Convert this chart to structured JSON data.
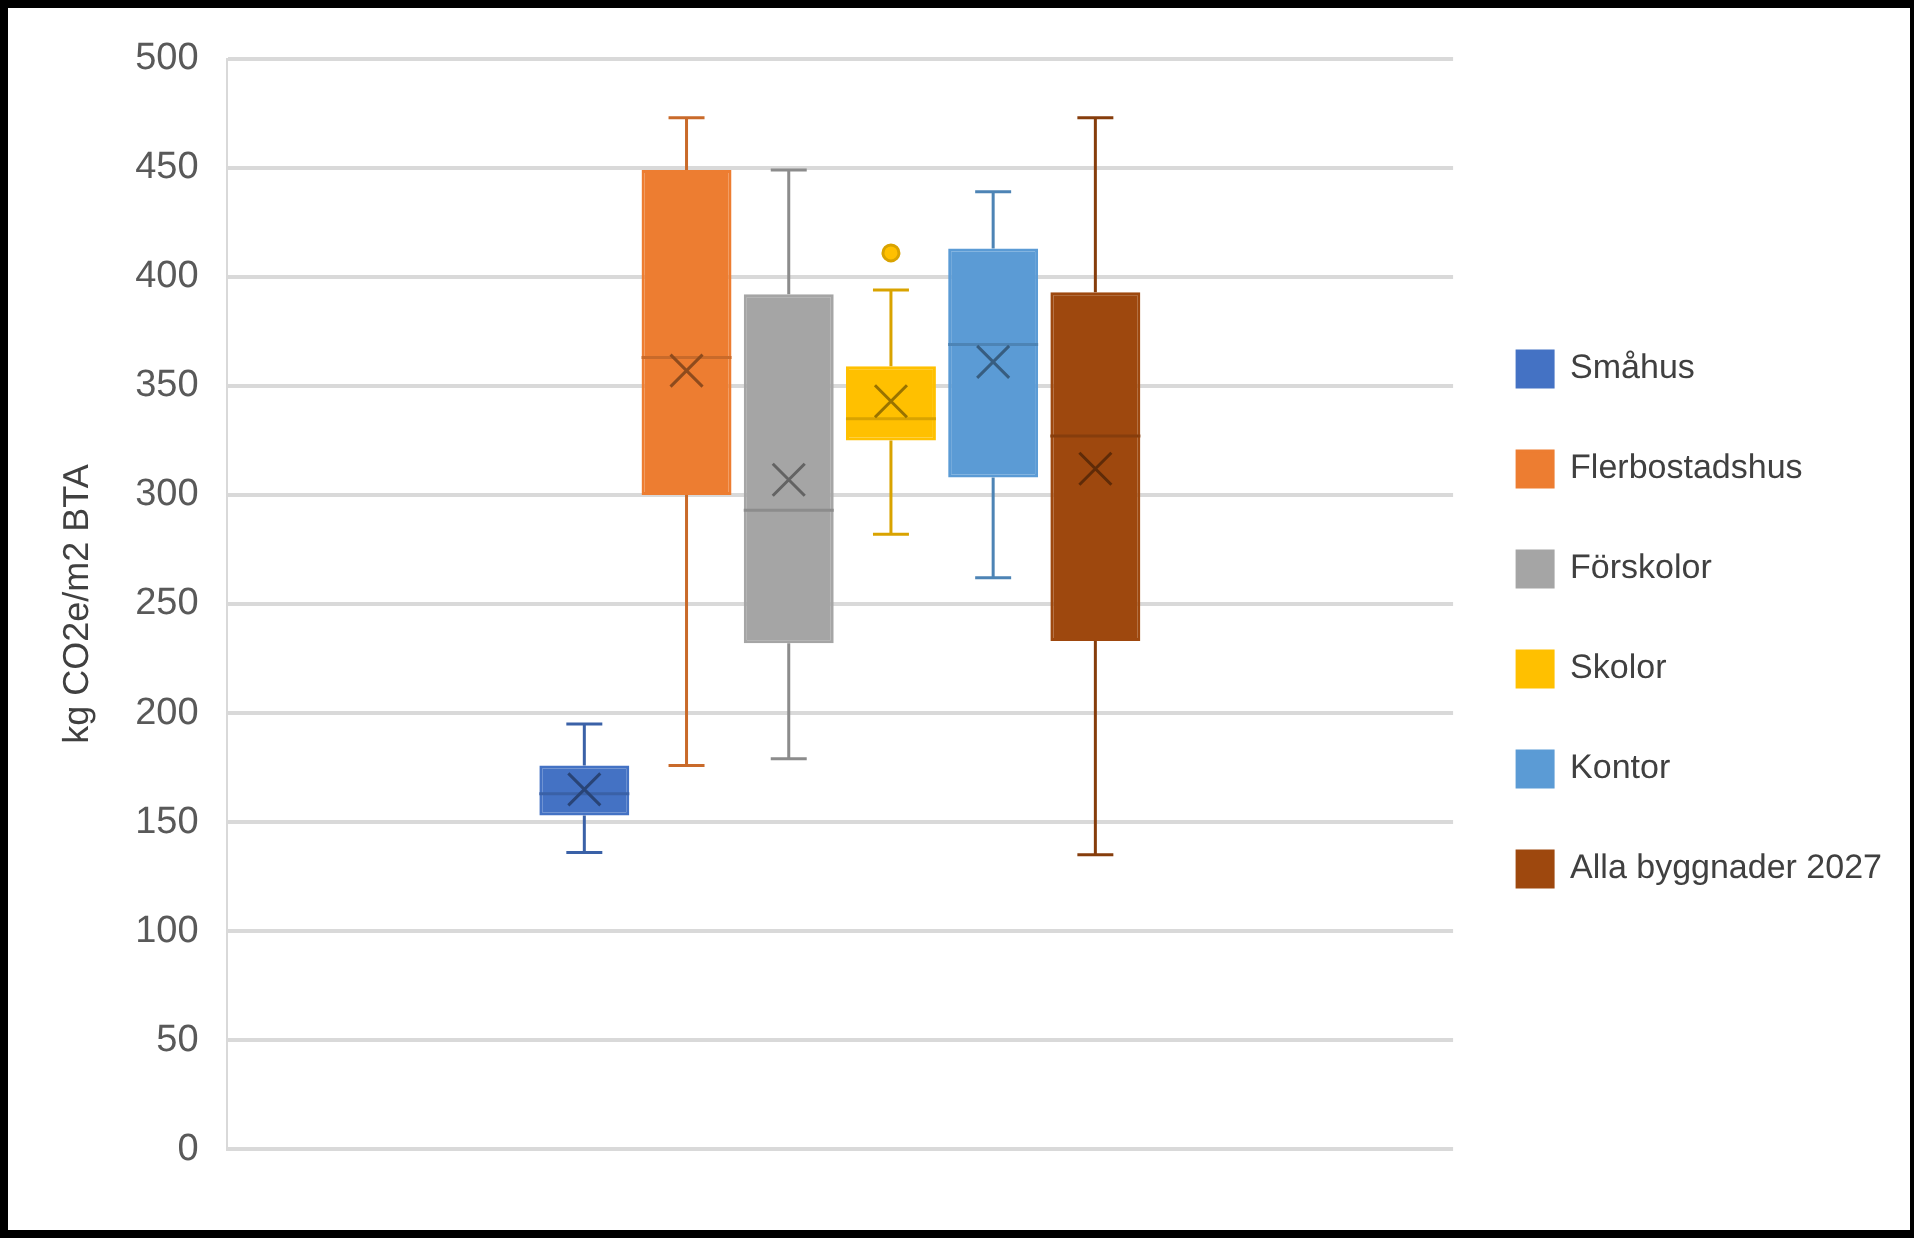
{
  "chart_data": {
    "type": "box",
    "ylabel": "kg CO2e/m2 BTA",
    "categories": [
      null
    ],
    "ylim": [
      0,
      500
    ],
    "yticks": [
      0,
      50,
      100,
      150,
      200,
      250,
      300,
      350,
      400,
      450,
      500
    ],
    "grid": "y",
    "legend": "right",
    "series": [
      {
        "name": "Småhus",
        "color": "#4472c4",
        "boxes": [
          {
            "low": 136,
            "q1": 153,
            "median": 163,
            "q3": 176,
            "high": 195,
            "mean": 165
          }
        ]
      },
      {
        "name": "Flerbostadshus",
        "color": "#ed7d31",
        "boxes": [
          {
            "low": 176,
            "q1": 300,
            "median": 363,
            "q3": 449,
            "high": 473,
            "mean": 357
          }
        ]
      },
      {
        "name": "Förskolor",
        "color": "#a5a5a5",
        "boxes": [
          {
            "low": 179,
            "q1": 232,
            "median": 293,
            "q3": 392,
            "high": 449,
            "mean": 307
          }
        ]
      },
      {
        "name": "Skolor",
        "color": "#ffc000",
        "boxes": [
          {
            "low": 282,
            "q1": 325,
            "median": 335,
            "q3": 359,
            "high": 394,
            "mean": 343,
            "outliers": [
              411
            ]
          }
        ]
      },
      {
        "name": "Kontor",
        "color": "#5b9bd5",
        "boxes": [
          {
            "low": 262,
            "q1": 308,
            "median": 369,
            "q3": 413,
            "high": 439,
            "mean": 361
          }
        ]
      },
      {
        "name": "Alla byggnader 2027",
        "color": "#9e480e",
        "boxes": [
          {
            "low": 135,
            "q1": 233,
            "median": 327,
            "q3": 393,
            "high": 473,
            "mean": 312
          }
        ]
      }
    ]
  }
}
